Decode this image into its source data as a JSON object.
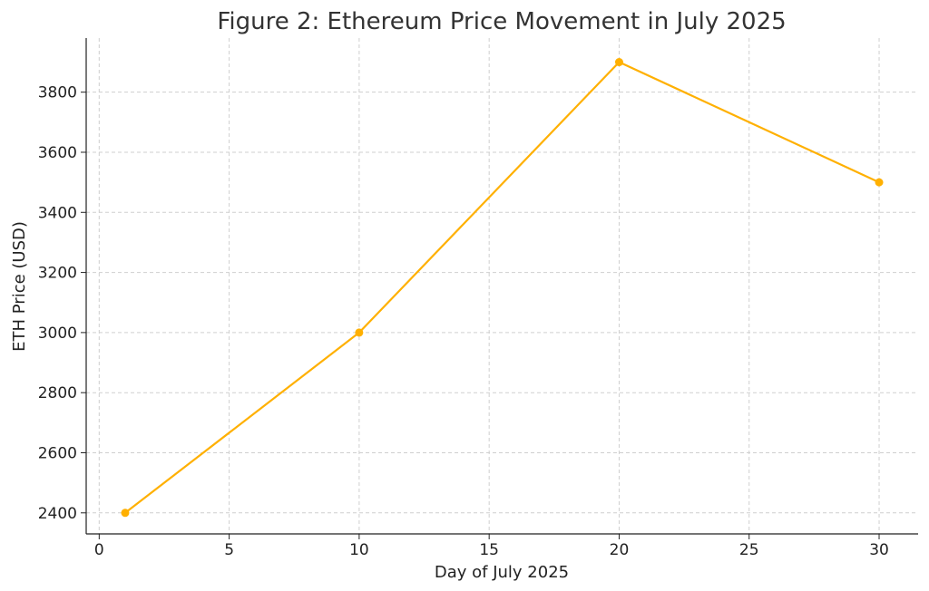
{
  "chart_data": {
    "type": "line",
    "title": "Figure 2: Ethereum Price Movement in July 2025",
    "xlabel": "Day of July 2025",
    "ylabel": "ETH Price (USD)",
    "xlim": [
      -0.5,
      31.5
    ],
    "ylim": [
      2330,
      3980
    ],
    "xticks": [
      0,
      5,
      10,
      15,
      20,
      25,
      30
    ],
    "yticks": [
      2400,
      2600,
      2800,
      3000,
      3200,
      3400,
      3600,
      3800
    ],
    "grid": true,
    "series": [
      {
        "color": "#FFB000",
        "x": [
          1,
          10,
          20,
          30
        ],
        "y": [
          2400,
          3000,
          3900,
          3500
        ]
      }
    ]
  }
}
